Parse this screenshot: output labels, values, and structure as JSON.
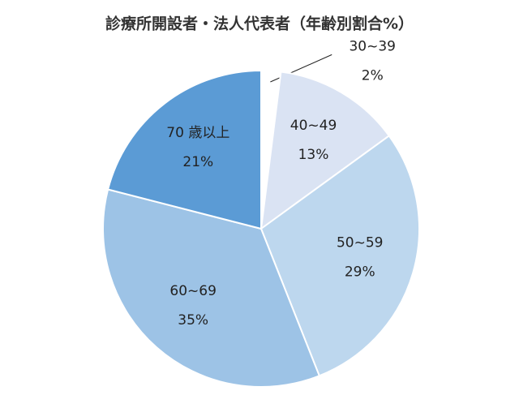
{
  "chart_data": {
    "type": "pie",
    "title": "診療所開設者・法人代表者（年齢別割合%）",
    "categories": [
      "30~39",
      "40~49",
      "50~59",
      "60~69",
      "70 歳以上"
    ],
    "values": [
      2,
      13,
      29,
      35,
      21
    ],
    "value_labels": [
      "2%",
      "13%",
      "29%",
      "35%",
      "21%"
    ],
    "colors": [
      "#ffffff",
      "#dae3f3",
      "#bdd7ee",
      "#9dc3e6",
      "#5b9bd5"
    ]
  }
}
